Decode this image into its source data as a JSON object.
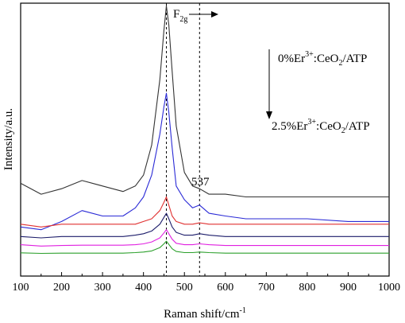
{
  "chart_data": {
    "type": "line",
    "xlabel": "Raman shift/cm",
    "xlabel_sup": "-1",
    "ylabel": "Intensity/a.u.",
    "xlim": [
      100,
      1000
    ],
    "ylim": [
      0,
      1
    ],
    "x_ticks": [
      "100",
      "200",
      "300",
      "400",
      "500",
      "600",
      "700",
      "800",
      "900",
      "1000"
    ],
    "y_ticks_labeled": false,
    "grid": false,
    "annotations": {
      "peak_main": "F",
      "peak_main_sub": "2g",
      "peak_second": "537",
      "top_sample_a": "0%Er",
      "top_sample_sup": "3+",
      "top_sample_b": ":CeO",
      "top_sample_sub": "2",
      "top_sample_c": "/ATP",
      "bottom_sample_a": "2.5%Er",
      "bottom_sample_sup": "3+",
      "bottom_sample_b": ":CeO",
      "bottom_sample_sub": "2",
      "bottom_sample_c": "/ATP"
    },
    "reference_lines_x": [
      456,
      537
    ],
    "x": [
      100,
      150,
      200,
      250,
      300,
      350,
      380,
      400,
      420,
      440,
      450,
      456,
      462,
      470,
      480,
      500,
      520,
      537,
      560,
      600,
      650,
      700,
      800,
      900,
      1000
    ],
    "series": [
      {
        "color": "#333333",
        "values": [
          0.34,
          0.3,
          0.32,
          0.35,
          0.33,
          0.31,
          0.33,
          0.37,
          0.48,
          0.72,
          0.9,
          0.99,
          0.92,
          0.75,
          0.55,
          0.38,
          0.33,
          0.32,
          0.3,
          0.3,
          0.29,
          0.29,
          0.29,
          0.29,
          0.29
        ]
      },
      {
        "color": "#2a2ad6",
        "values": [
          0.18,
          0.17,
          0.2,
          0.24,
          0.22,
          0.22,
          0.25,
          0.29,
          0.37,
          0.52,
          0.62,
          0.67,
          0.6,
          0.47,
          0.33,
          0.28,
          0.25,
          0.26,
          0.23,
          0.22,
          0.21,
          0.21,
          0.21,
          0.2,
          0.2
        ]
      },
      {
        "color": "#e03030",
        "values": [
          0.19,
          0.18,
          0.19,
          0.19,
          0.19,
          0.19,
          0.19,
          0.2,
          0.21,
          0.24,
          0.27,
          0.29,
          0.26,
          0.22,
          0.2,
          0.19,
          0.19,
          0.195,
          0.19,
          0.19,
          0.19,
          0.19,
          0.19,
          0.19,
          0.19
        ]
      },
      {
        "color": "#1c1c6a",
        "values": [
          0.145,
          0.14,
          0.145,
          0.145,
          0.145,
          0.145,
          0.15,
          0.155,
          0.165,
          0.19,
          0.215,
          0.23,
          0.21,
          0.18,
          0.16,
          0.15,
          0.15,
          0.155,
          0.15,
          0.145,
          0.145,
          0.145,
          0.145,
          0.145,
          0.145
        ]
      },
      {
        "color": "#e020e0",
        "values": [
          0.115,
          0.11,
          0.112,
          0.113,
          0.113,
          0.113,
          0.115,
          0.118,
          0.125,
          0.14,
          0.158,
          0.17,
          0.155,
          0.135,
          0.12,
          0.115,
          0.115,
          0.118,
          0.115,
          0.112,
          0.112,
          0.112,
          0.112,
          0.112,
          0.112
        ]
      },
      {
        "color": "#2ca02c",
        "values": [
          0.085,
          0.083,
          0.084,
          0.084,
          0.084,
          0.084,
          0.086,
          0.088,
          0.092,
          0.104,
          0.118,
          0.128,
          0.116,
          0.1,
          0.09,
          0.086,
          0.086,
          0.088,
          0.086,
          0.084,
          0.084,
          0.084,
          0.084,
          0.084,
          0.084
        ]
      }
    ]
  }
}
